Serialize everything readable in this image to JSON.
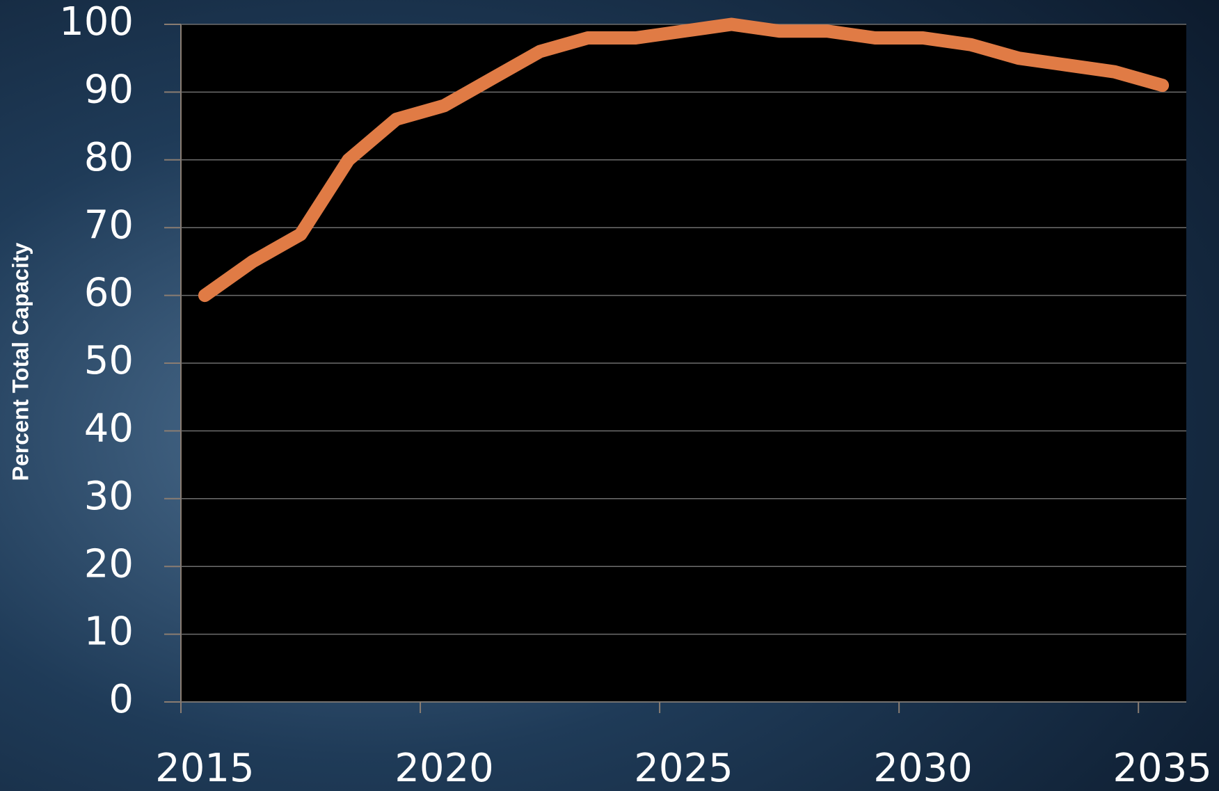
{
  "chart_data": {
    "type": "line",
    "y_label": "Percent Total Capacity",
    "categories": [
      "2015",
      null,
      null,
      null,
      null,
      "2020",
      null,
      null,
      null,
      null,
      "2025",
      null,
      null,
      null,
      null,
      "2030",
      null,
      null,
      null,
      null,
      "2035"
    ],
    "series": [
      {
        "name": "Percent Total Capacity",
        "color": "#e07b45",
        "values": [
          60,
          65,
          69,
          80,
          86,
          88,
          92,
          96,
          98,
          98,
          99,
          100,
          99,
          99,
          98,
          98,
          97,
          95,
          94,
          93,
          91
        ]
      }
    ],
    "ylim": [
      0,
      100
    ],
    "yticks": [
      0,
      10,
      20,
      30,
      40,
      50,
      60,
      70,
      80,
      90,
      100
    ],
    "grid": true
  }
}
